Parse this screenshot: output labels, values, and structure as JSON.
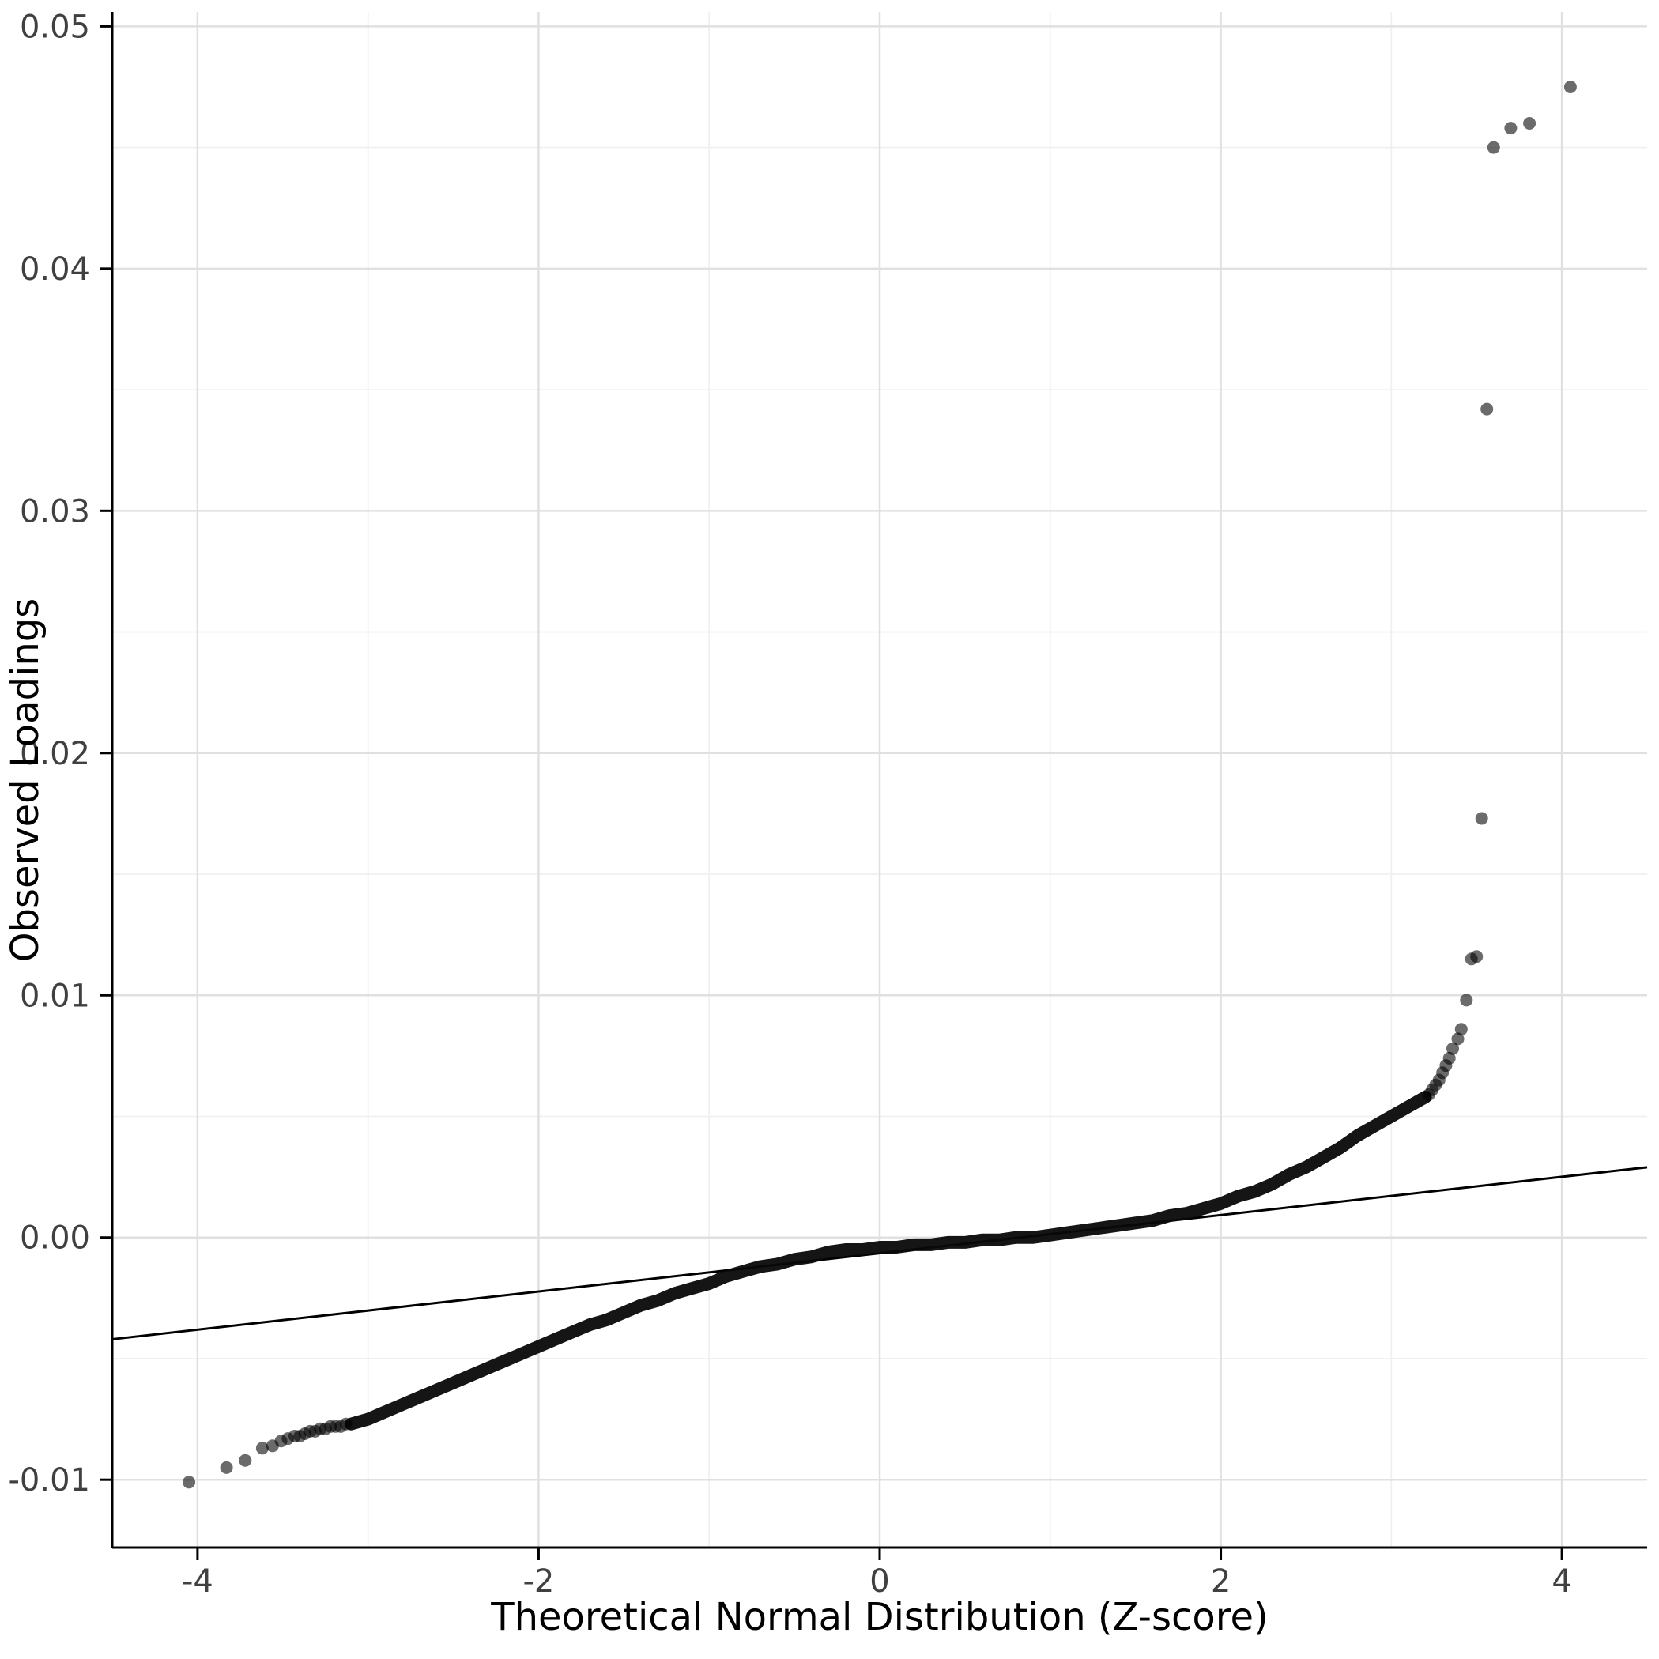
{
  "chart_data": {
    "type": "scatter",
    "title": "",
    "xlabel": "Theoretical Normal Distribution (Z-score)",
    "ylabel": "Observed Loadings",
    "legend": "none",
    "grid": "on",
    "xlim": [
      -4.5,
      4.5
    ],
    "ylim": [
      -0.0128,
      0.0506
    ],
    "x_ticks": {
      "major": [
        -4,
        -2,
        0,
        2,
        4
      ],
      "minor": [
        -3,
        -1,
        1,
        3
      ],
      "labels": [
        "-4",
        "-2",
        "0",
        "2",
        "4"
      ]
    },
    "y_ticks": {
      "major": [
        -0.01,
        0.0,
        0.01,
        0.02,
        0.03,
        0.04,
        0.05
      ],
      "minor": [
        -0.005,
        0.005,
        0.015,
        0.025,
        0.035,
        0.045
      ],
      "labels": [
        "-0.01",
        "0.00",
        "0.01",
        "0.02",
        "0.03",
        "0.04",
        "0.05"
      ]
    },
    "reference_line": {
      "x1": -4.5,
      "y1": -0.0042,
      "x2": 4.5,
      "y2": 0.0029
    },
    "dense_band": [
      [
        -3.1,
        -0.0077
      ],
      [
        -3.0,
        -0.0075
      ],
      [
        -2.9,
        -0.0072
      ],
      [
        -2.8,
        -0.0069
      ],
      [
        -2.7,
        -0.0066
      ],
      [
        -2.6,
        -0.0063
      ],
      [
        -2.5,
        -0.006
      ],
      [
        -2.4,
        -0.0057
      ],
      [
        -2.3,
        -0.0054
      ],
      [
        -2.2,
        -0.0051
      ],
      [
        -2.1,
        -0.0048
      ],
      [
        -2.0,
        -0.0045
      ],
      [
        -1.9,
        -0.0042
      ],
      [
        -1.8,
        -0.0039
      ],
      [
        -1.7,
        -0.0036
      ],
      [
        -1.6,
        -0.0034
      ],
      [
        -1.5,
        -0.0031
      ],
      [
        -1.4,
        -0.0028
      ],
      [
        -1.3,
        -0.0026
      ],
      [
        -1.2,
        -0.0023
      ],
      [
        -1.1,
        -0.0021
      ],
      [
        -1.0,
        -0.0019
      ],
      [
        -0.9,
        -0.0016
      ],
      [
        -0.8,
        -0.0014
      ],
      [
        -0.7,
        -0.0012
      ],
      [
        -0.6,
        -0.0011
      ],
      [
        -0.5,
        -0.0009
      ],
      [
        -0.4,
        -0.0008
      ],
      [
        -0.3,
        -0.0006
      ],
      [
        -0.2,
        -0.0005
      ],
      [
        -0.1,
        -0.0005
      ],
      [
        0.0,
        -0.0004
      ],
      [
        0.1,
        -0.0004
      ],
      [
        0.2,
        -0.0003
      ],
      [
        0.3,
        -0.0003
      ],
      [
        0.4,
        -0.0002
      ],
      [
        0.5,
        -0.0002
      ],
      [
        0.6,
        -0.0001
      ],
      [
        0.7,
        -0.0001
      ],
      [
        0.8,
        0.0
      ],
      [
        0.9,
        0.0
      ],
      [
        1.0,
        0.0001
      ],
      [
        1.1,
        0.0002
      ],
      [
        1.2,
        0.0003
      ],
      [
        1.3,
        0.0004
      ],
      [
        1.4,
        0.0005
      ],
      [
        1.5,
        0.0006
      ],
      [
        1.6,
        0.0007
      ],
      [
        1.7,
        0.0009
      ],
      [
        1.8,
        0.001
      ],
      [
        1.9,
        0.0012
      ],
      [
        2.0,
        0.0014
      ],
      [
        2.1,
        0.0017
      ],
      [
        2.2,
        0.0019
      ],
      [
        2.3,
        0.0022
      ],
      [
        2.4,
        0.0026
      ],
      [
        2.5,
        0.0029
      ],
      [
        2.6,
        0.0033
      ],
      [
        2.7,
        0.0037
      ],
      [
        2.8,
        0.0042
      ],
      [
        2.9,
        0.0046
      ],
      [
        3.0,
        0.005
      ],
      [
        3.1,
        0.0054
      ],
      [
        3.2,
        0.0058
      ]
    ],
    "points": [
      [
        -4.05,
        -0.0101
      ],
      [
        -3.83,
        -0.0095
      ],
      [
        -3.72,
        -0.0092
      ],
      [
        -3.62,
        -0.0087
      ],
      [
        -3.56,
        -0.0086
      ],
      [
        -3.51,
        -0.0084
      ],
      [
        -3.47,
        -0.0083
      ],
      [
        -3.43,
        -0.0082
      ],
      [
        -3.4,
        -0.0082
      ],
      [
        -3.37,
        -0.0081
      ],
      [
        -3.34,
        -0.008
      ],
      [
        -3.31,
        -0.008
      ],
      [
        -3.28,
        -0.0079
      ],
      [
        -3.25,
        -0.0079
      ],
      [
        -3.22,
        -0.0078
      ],
      [
        -3.19,
        -0.0078
      ],
      [
        -3.16,
        -0.0078
      ],
      [
        -3.13,
        -0.0077
      ],
      [
        3.22,
        0.0059
      ],
      [
        3.24,
        0.0061
      ],
      [
        3.26,
        0.0063
      ],
      [
        3.28,
        0.0065
      ],
      [
        3.3,
        0.0068
      ],
      [
        3.32,
        0.0071
      ],
      [
        3.34,
        0.0074
      ],
      [
        3.36,
        0.0078
      ],
      [
        3.39,
        0.0082
      ],
      [
        3.41,
        0.0086
      ],
      [
        3.44,
        0.0098
      ],
      [
        3.47,
        0.0115
      ],
      [
        3.5,
        0.0116
      ],
      [
        3.53,
        0.0173
      ],
      [
        3.56,
        0.0342
      ],
      [
        3.6,
        0.045
      ],
      [
        3.7,
        0.0458
      ],
      [
        3.81,
        0.046
      ],
      [
        4.05,
        0.0475
      ]
    ],
    "style": {
      "background": "#ffffff",
      "grid_major_color": "#e0e0e0",
      "grid_minor_color": "#f0f0f0",
      "axis_color": "#000000",
      "tick_label_color": "#404040",
      "point_color": "#000000",
      "point_opacity": 0.58,
      "point_radius": 8,
      "band_stroke_width": 16
    }
  }
}
